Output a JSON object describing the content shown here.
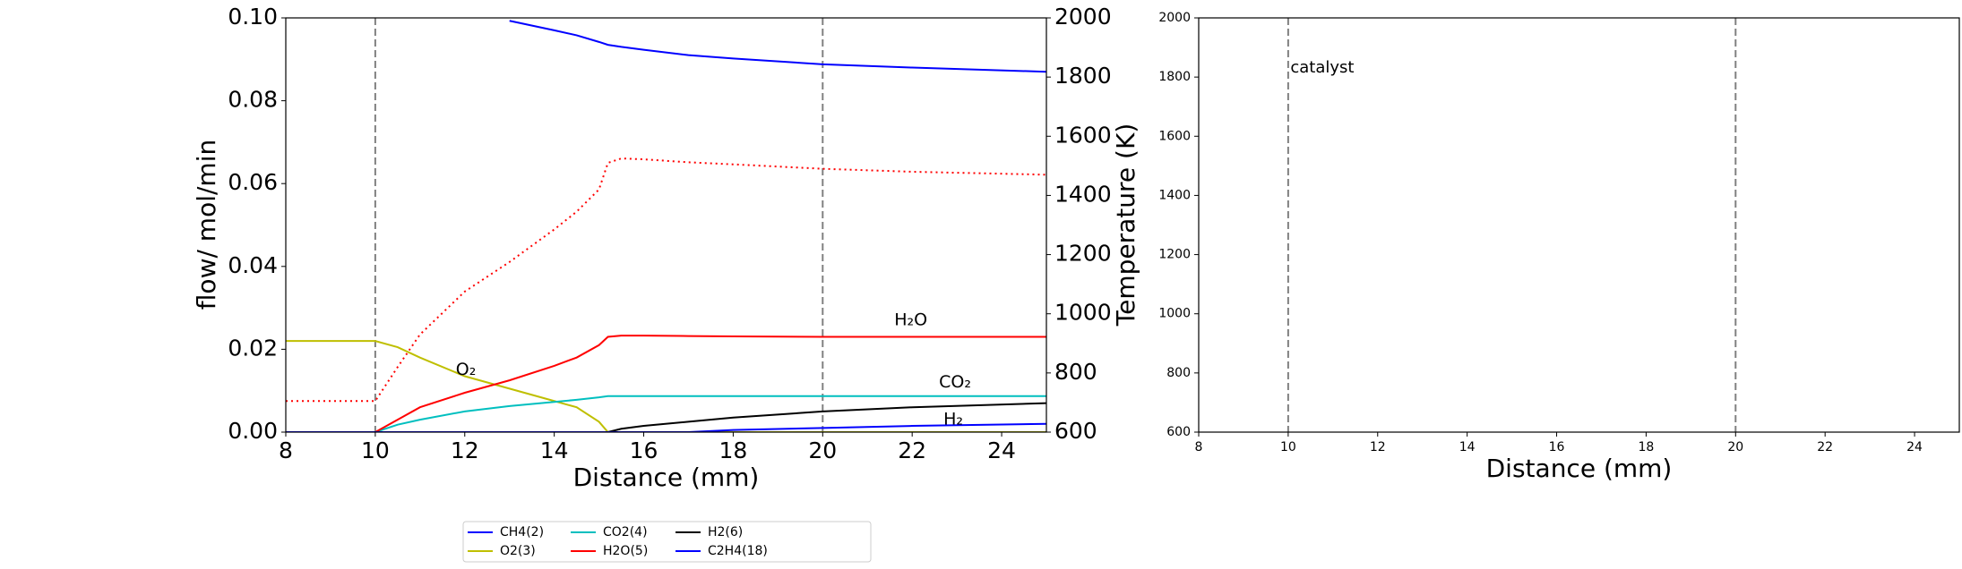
{
  "chart_data": [
    {
      "type": "line",
      "xlabel": "Distance (mm)",
      "ylabel": "flow/ mol/min",
      "y2label": "Temperature (K)",
      "xlim": [
        8,
        25
      ],
      "xticks": [
        8,
        10,
        12,
        14,
        16,
        18,
        20,
        22,
        24
      ],
      "ylim": [
        0,
        0.1
      ],
      "yticks": [
        {
          "value": 0,
          "label": "0.00"
        },
        {
          "value": 0.02,
          "label": "0.02"
        },
        {
          "value": 0.04,
          "label": "0.04"
        },
        {
          "value": 0.06,
          "label": "0.06"
        },
        {
          "value": 0.08,
          "label": "0.08"
        },
        {
          "value": 0.1,
          "label": "0.10"
        }
      ],
      "y2lim": [
        600,
        2000
      ],
      "y2ticks": [
        600,
        800,
        1000,
        1200,
        1400,
        1600,
        1800,
        2000
      ],
      "vlines": [
        10,
        20
      ],
      "x": [
        8,
        10,
        10.5,
        11,
        12,
        13,
        14,
        14.5,
        15,
        15.2,
        15.5,
        16,
        17,
        18,
        20,
        22,
        25
      ],
      "series": [
        {
          "name": "CH4(2)",
          "color": "#0000ff",
          "values": [
            null,
            null,
            null,
            null,
            null,
            0.0993,
            0.097,
            0.0958,
            0.0942,
            0.0935,
            0.093,
            0.0923,
            0.091,
            0.0902,
            0.0888,
            0.088,
            0.087
          ]
        },
        {
          "name": "O2(3)",
          "color": "#bfbf00",
          "values": [
            0.022,
            0.022,
            0.0205,
            0.018,
            0.0135,
            0.0105,
            0.0075,
            0.006,
            0.0025,
            0,
            0,
            0,
            0,
            0,
            0,
            0,
            0
          ]
        },
        {
          "name": "CO2(4)",
          "color": "#00bfbf",
          "values": [
            0,
            0,
            0.0018,
            0.003,
            0.005,
            0.0063,
            0.0073,
            0.0078,
            0.0084,
            0.0087,
            0.0087,
            0.0087,
            0.0087,
            0.0087,
            0.0087,
            0.0087,
            0.0087
          ]
        },
        {
          "name": "H2O(5)",
          "color": "#ff0000",
          "values": [
            0,
            0,
            0.003,
            0.006,
            0.0095,
            0.0125,
            0.016,
            0.018,
            0.021,
            0.023,
            0.0233,
            0.0233,
            0.0232,
            0.0231,
            0.023,
            0.023,
            0.023
          ]
        },
        {
          "name": "H2(6)",
          "color": "#000000",
          "values": [
            0,
            0,
            0,
            0,
            0,
            0,
            0,
            0,
            0,
            0,
            0.0008,
            0.0015,
            0.0025,
            0.0035,
            0.005,
            0.006,
            0.007
          ]
        },
        {
          "name": "C2H4(18)",
          "color": "#0000ff",
          "values": [
            0,
            0,
            0,
            0,
            0,
            0,
            0,
            0,
            0,
            0,
            0,
            0,
            0,
            0.0005,
            0.001,
            0.0015,
            0.002
          ]
        }
      ],
      "temperature": {
        "axis": "y2",
        "color": "#ff0000",
        "values": [
          705,
          705,
          820,
          930,
          1075,
          1175,
          1285,
          1345,
          1420,
          1510,
          1525,
          1522,
          1512,
          1505,
          1490,
          1480,
          1470
        ]
      },
      "annotations": [
        {
          "text": "H₂O",
          "color": "#ff0000",
          "x": 21.6,
          "y": 0.027
        },
        {
          "text": "O₂",
          "color": "#bfbf00",
          "x": 11.8,
          "y": 0.015
        },
        {
          "text": "CO₂",
          "color": "#00bfbf",
          "x": 22.6,
          "y": 0.012
        },
        {
          "text": "H₂",
          "color": "#000000",
          "x": 22.7,
          "y": 0.003
        }
      ]
    },
    {
      "type": "line",
      "xlabel": "Distance (mm)",
      "xlim": [
        8,
        25
      ],
      "xticks": [
        8,
        10,
        12,
        14,
        16,
        18,
        20,
        22,
        24
      ],
      "ylim": [
        600,
        2000
      ],
      "yticks": [
        600,
        800,
        1000,
        1200,
        1400,
        1600,
        1800,
        2000
      ],
      "vlines": [
        10,
        20
      ],
      "x": [],
      "series": [],
      "annotations": [
        {
          "text": "catalyst",
          "color": "#000000",
          "x": 10.05,
          "y": 1830
        }
      ]
    }
  ]
}
